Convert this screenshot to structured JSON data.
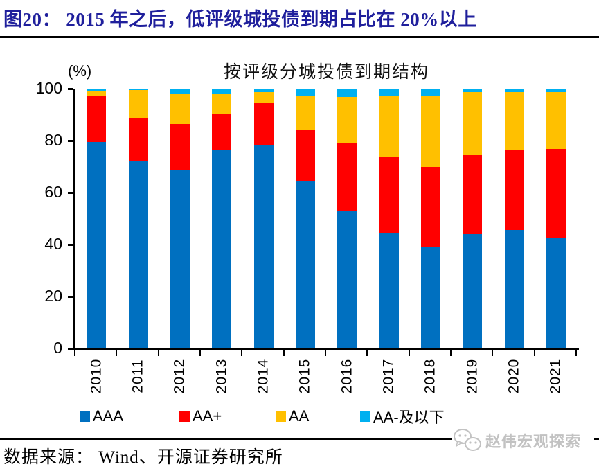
{
  "header": {
    "title": "图20：  2015 年之后，低评级城投债到期占比在 20%以上"
  },
  "chart": {
    "title": "按评级分城投债到期结构",
    "unit_label": "(%)",
    "y_ticks": [
      0,
      20,
      40,
      60,
      80,
      100
    ]
  },
  "chart_data": {
    "type": "bar",
    "stacked": true,
    "title": "按评级分城投债到期结构",
    "ylabel": "(%)",
    "ylim": [
      0,
      100
    ],
    "grid": false,
    "legend_position": "bottom",
    "categories": [
      "2010",
      "2011",
      "2012",
      "2013",
      "2014",
      "2015",
      "2016",
      "2017",
      "2018",
      "2019",
      "2020",
      "2021"
    ],
    "series": [
      {
        "name": "AAA",
        "color": "#0070C0",
        "values": [
          79.6,
          72.2,
          68.6,
          76.5,
          78.5,
          64.4,
          52.8,
          44.5,
          39.1,
          44.1,
          45.7,
          42.4
        ]
      },
      {
        "name": "AA+",
        "color": "#FF0000",
        "values": [
          17.7,
          16.6,
          17.8,
          13.9,
          15.9,
          19.9,
          26.1,
          29.3,
          30.7,
          30.2,
          30.6,
          34.3
        ]
      },
      {
        "name": "AA",
        "color": "#FFC000",
        "values": [
          1.6,
          10.6,
          11.6,
          7.6,
          4.2,
          13.1,
          18.0,
          23.2,
          27.3,
          24.3,
          22.5,
          21.9
        ]
      },
      {
        "name": "AA-及以下",
        "color": "#00B0F0",
        "values": [
          1.1,
          0.6,
          2.0,
          2.0,
          1.4,
          2.6,
          3.1,
          3.0,
          2.9,
          1.4,
          1.2,
          1.4
        ]
      }
    ]
  },
  "footer": {
    "source": "数据来源：  Wind、开源证券研究所"
  },
  "watermark": {
    "icon": "panda-chat-icon",
    "text": "赵伟宏观探索"
  },
  "colors": {
    "title": "#1f1f9c",
    "axis": "#000000",
    "watermark_gray": "#c2c2c2"
  }
}
